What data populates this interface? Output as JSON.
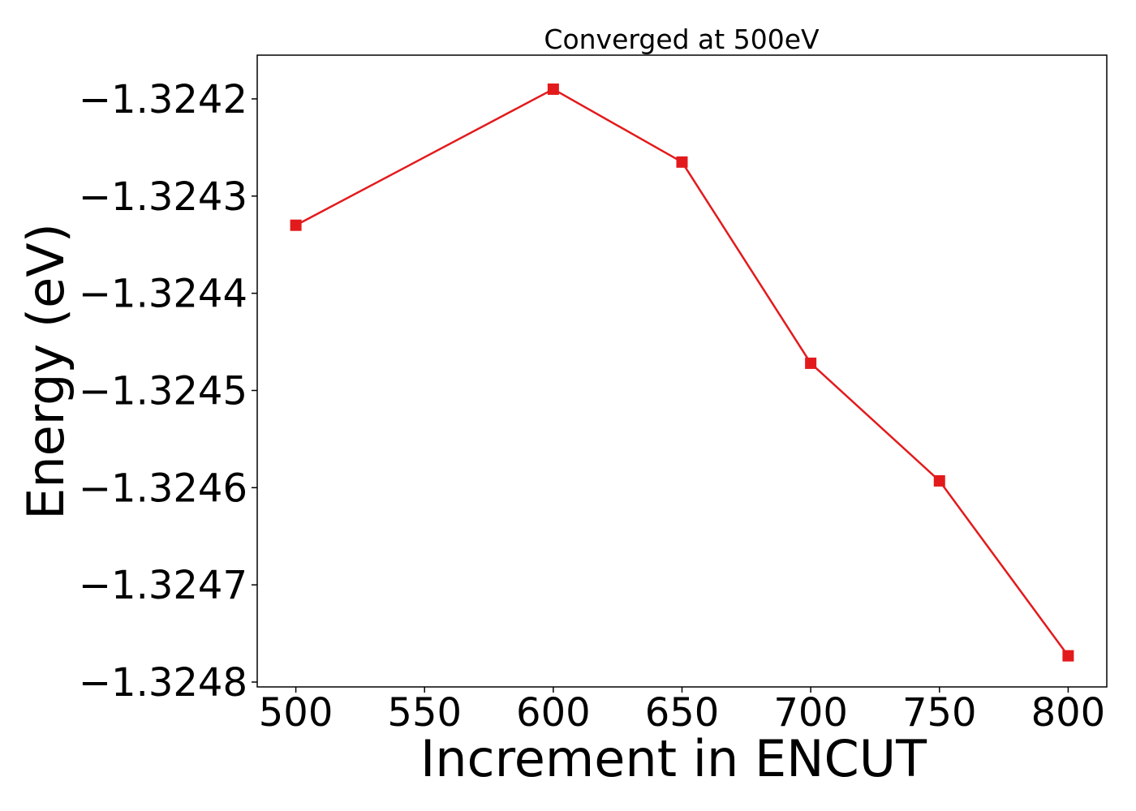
{
  "chart_data": {
    "type": "line",
    "title": "Converged at 500eV",
    "xlabel": "Increment in ENCUT",
    "ylabel": "Energy (eV)",
    "x": [
      500,
      600,
      650,
      700,
      750,
      800
    ],
    "series": [
      {
        "values": [
          -1.32433,
          -1.32419,
          -1.324265,
          -1.324472,
          -1.324593,
          -1.324773
        ],
        "color": "#e31a1c",
        "marker": "square"
      }
    ],
    "xlim": [
      485,
      815
    ],
    "ylim": [
      -1.324805,
      -1.324155
    ],
    "xticks": [
      500,
      550,
      600,
      650,
      700,
      750,
      800
    ],
    "xtick_labels": [
      "500",
      "550",
      "600",
      "650",
      "700",
      "750",
      "800"
    ],
    "yticks": [
      -1.3242,
      -1.3243,
      -1.3244,
      -1.3245,
      -1.3246,
      -1.3247,
      -1.3248
    ],
    "ytick_labels": [
      "−1.3242",
      "−1.3243",
      "−1.3244",
      "−1.3245",
      "−1.3246",
      "−1.3247",
      "−1.3248"
    ],
    "grid": false,
    "legend": "none"
  }
}
